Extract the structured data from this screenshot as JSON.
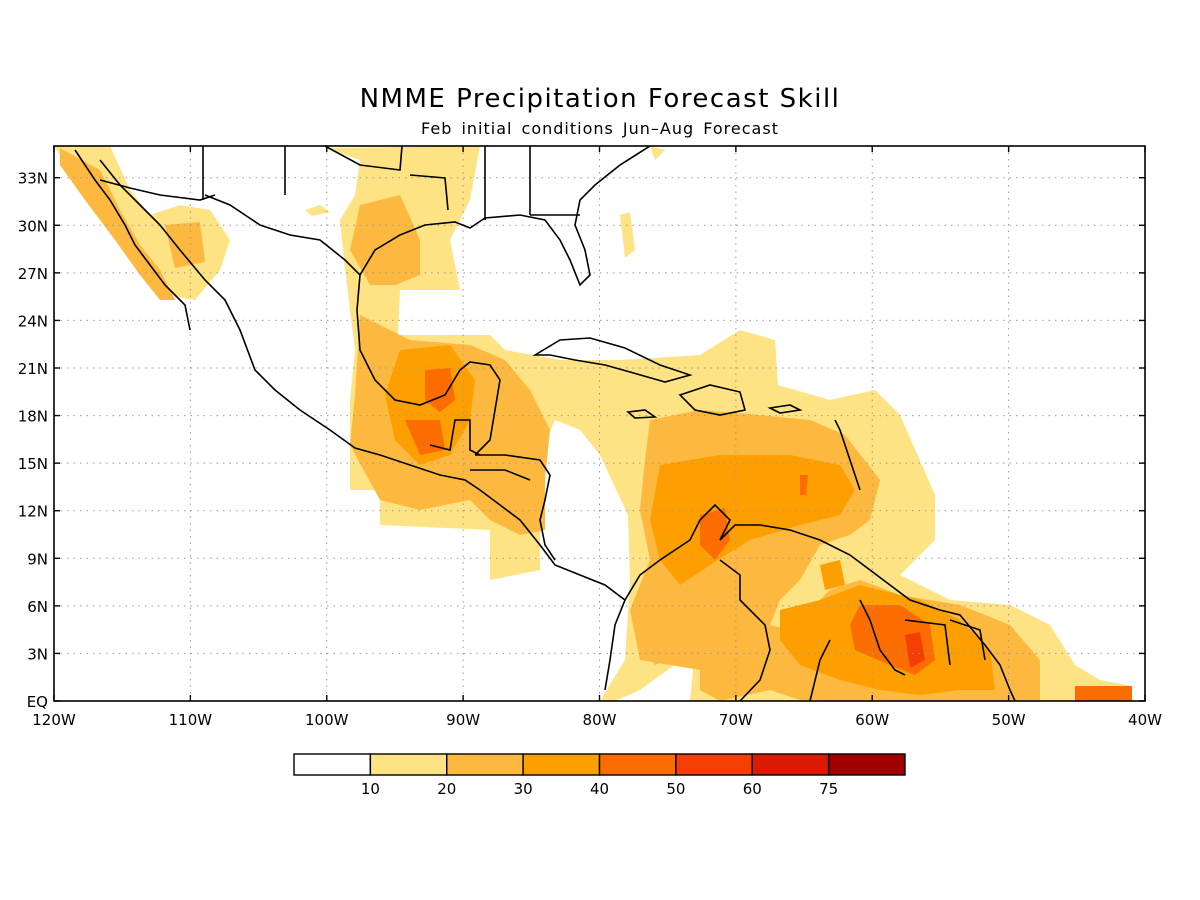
{
  "header": {
    "title": "NMME Precipitation Forecast Skill",
    "subtitle": "Feb initial conditions  Jun–Aug Forecast"
  },
  "map": {
    "lon_range": [
      -120,
      -40
    ],
    "lat_range": [
      0,
      35
    ],
    "grid": true,
    "lon_ticks": [
      {
        "value": -120,
        "label": "120W"
      },
      {
        "value": -110,
        "label": "110W"
      },
      {
        "value": -100,
        "label": "100W"
      },
      {
        "value": -90,
        "label": "90W"
      },
      {
        "value": -80,
        "label": "80W"
      },
      {
        "value": -70,
        "label": "70W"
      },
      {
        "value": -60,
        "label": "60W"
      },
      {
        "value": -50,
        "label": "50W"
      },
      {
        "value": -40,
        "label": "40W"
      }
    ],
    "lat_ticks": [
      {
        "value": 0,
        "label": "EQ"
      },
      {
        "value": 3,
        "label": "3N"
      },
      {
        "value": 6,
        "label": "6N"
      },
      {
        "value": 9,
        "label": "9N"
      },
      {
        "value": 12,
        "label": "12N"
      },
      {
        "value": 15,
        "label": "15N"
      },
      {
        "value": 18,
        "label": "18N"
      },
      {
        "value": 21,
        "label": "21N"
      },
      {
        "value": 24,
        "label": "24N"
      },
      {
        "value": 27,
        "label": "27N"
      },
      {
        "value": 30,
        "label": "30N"
      },
      {
        "value": 33,
        "label": "33N"
      }
    ]
  },
  "legend": {
    "colors": [
      "#ffffff",
      "#fee384",
      "#fdb93f",
      "#fd9f00",
      "#fc6d01",
      "#f53f02",
      "#da1b01",
      "#a10001"
    ],
    "labels": [
      "10",
      "20",
      "30",
      "40",
      "50",
      "60",
      "75"
    ]
  },
  "fill_colors": {
    "c10": "#fee384",
    "c20": "#fdb93f",
    "c30": "#fd9f00",
    "c40": "#fc6d01",
    "c50": "#f53f02"
  },
  "line_colors": {
    "coast": "#000000",
    "grid": "#999999"
  }
}
